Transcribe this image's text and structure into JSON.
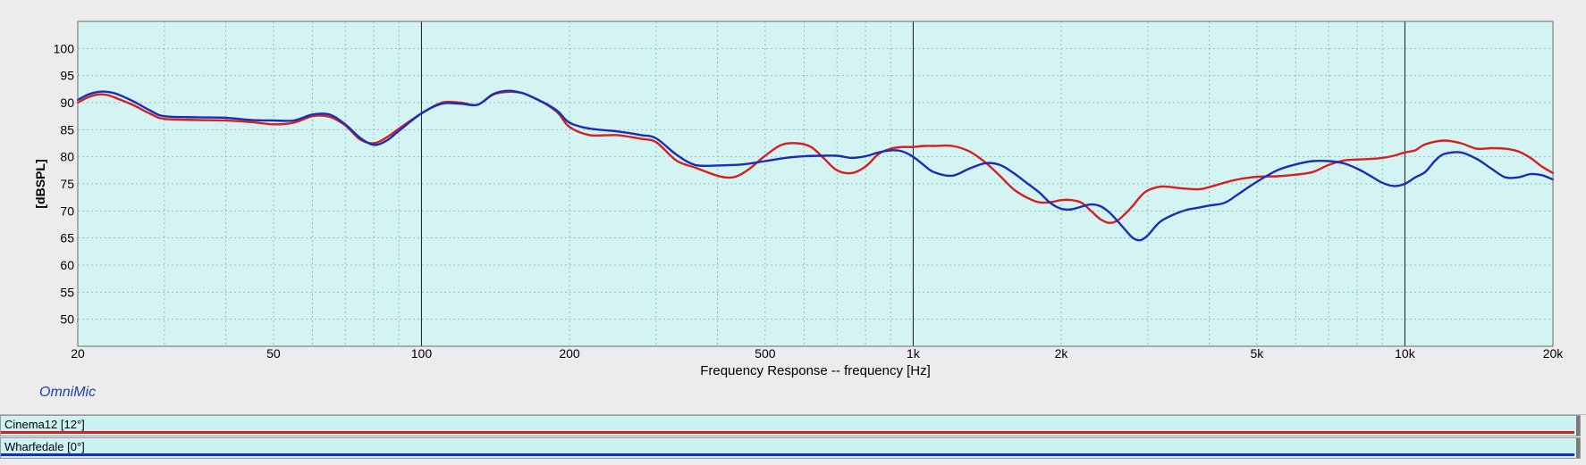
{
  "brand_label": "OmniMic",
  "legend": [
    {
      "label": "Cinema12 [12°]",
      "color": "#d42020"
    },
    {
      "label": "Wharfedale [0°]",
      "color": "#1a2db8"
    }
  ],
  "chart_data": {
    "type": "line",
    "title": "",
    "xlabel": "Frequency Response -- frequency [Hz]",
    "ylabel": "[dBSPL]",
    "xscale": "log",
    "xlim": [
      20,
      20000
    ],
    "ylim": [
      45,
      105
    ],
    "y_ticks": [
      50,
      55,
      60,
      65,
      70,
      75,
      80,
      85,
      90,
      95,
      100
    ],
    "x_ticks": [
      {
        "value": 20,
        "label": "20"
      },
      {
        "value": 50,
        "label": "50"
      },
      {
        "value": 100,
        "label": "100"
      },
      {
        "value": 200,
        "label": "200"
      },
      {
        "value": 500,
        "label": "500"
      },
      {
        "value": 1000,
        "label": "1k"
      },
      {
        "value": 2000,
        "label": "2k"
      },
      {
        "value": 5000,
        "label": "5k"
      },
      {
        "value": 10000,
        "label": "10k"
      },
      {
        "value": 20000,
        "label": "20k"
      }
    ],
    "grid": true,
    "background": "#d4f4f4",
    "legend_position": "bottom",
    "series": [
      {
        "name": "Cinema12 [12°]",
        "color": "#d42020",
        "x": [
          20,
          21,
          22,
          23,
          24,
          26,
          28,
          30,
          35,
          40,
          45,
          50,
          55,
          60,
          65,
          70,
          75,
          80,
          85,
          90,
          100,
          110,
          120,
          130,
          140,
          150,
          160,
          170,
          180,
          190,
          200,
          220,
          250,
          280,
          300,
          330,
          360,
          400,
          430,
          460,
          500,
          540,
          580,
          620,
          660,
          700,
          750,
          800,
          850,
          900,
          950,
          1000,
          1050,
          1100,
          1200,
          1300,
          1400,
          1500,
          1600,
          1700,
          1800,
          1900,
          2000,
          2100,
          2200,
          2300,
          2400,
          2500,
          2600,
          2700,
          2800,
          2900,
          3000,
          3200,
          3500,
          3800,
          4000,
          4500,
          5000,
          5500,
          6000,
          6500,
          7000,
          7500,
          8000,
          8500,
          9000,
          9500,
          10000,
          10500,
          11000,
          12000,
          13000,
          14000,
          15000,
          16000,
          17000,
          18000,
          19000,
          20000
        ],
        "y": [
          90,
          91,
          91.5,
          91.4,
          90.8,
          89.5,
          88,
          87,
          86.8,
          86.7,
          86.4,
          86,
          86.3,
          87.5,
          87.4,
          85.8,
          83.2,
          82.5,
          83.6,
          85.2,
          88,
          90,
          90,
          89.6,
          91.5,
          92,
          91.8,
          90.8,
          89.6,
          88,
          85.5,
          84,
          84,
          83.3,
          82.7,
          79.3,
          78,
          76.5,
          76.2,
          77.5,
          80.2,
          82.2,
          82.5,
          81.8,
          79.6,
          77.5,
          77,
          78.2,
          80.5,
          81.5,
          81.8,
          81.8,
          82,
          82,
          82,
          81,
          79,
          76.5,
          74,
          72.5,
          71.6,
          71.6,
          72,
          72,
          71.5,
          70,
          68.5,
          67.8,
          68.2,
          69.5,
          71,
          72.7,
          73.8,
          74.5,
          74.2,
          74,
          74.4,
          75.7,
          76.3,
          76.4,
          76.7,
          77.2,
          78.5,
          79.3,
          79.5,
          79.6,
          79.8,
          80.2,
          80.8,
          81.2,
          82.3,
          83,
          82.5,
          81.5,
          81.6,
          81.5,
          81,
          79.8,
          78.2,
          77
        ]
      },
      {
        "name": "Wharfedale [0°]",
        "color": "#1a2db8",
        "x": [
          20,
          21,
          22,
          23,
          24,
          26,
          28,
          30,
          35,
          40,
          45,
          50,
          55,
          60,
          65,
          70,
          75,
          80,
          85,
          90,
          100,
          110,
          120,
          130,
          140,
          150,
          160,
          170,
          180,
          190,
          200,
          220,
          250,
          280,
          300,
          330,
          360,
          400,
          450,
          500,
          550,
          600,
          650,
          700,
          750,
          800,
          850,
          900,
          950,
          1000,
          1050,
          1100,
          1200,
          1300,
          1400,
          1500,
          1600,
          1700,
          1800,
          1900,
          2000,
          2100,
          2200,
          2300,
          2400,
          2500,
          2600,
          2700,
          2800,
          2900,
          3000,
          3100,
          3200,
          3400,
          3600,
          3800,
          4000,
          4300,
          4600,
          5000,
          5500,
          6000,
          6500,
          7000,
          7500,
          8000,
          8500,
          9000,
          9500,
          10000,
          10500,
          11000,
          11500,
          12000,
          13000,
          14000,
          15000,
          16000,
          17000,
          18000,
          19000,
          20000
        ],
        "y": [
          90.5,
          91.5,
          92,
          92,
          91.6,
          90.2,
          88.6,
          87.5,
          87.3,
          87.2,
          86.8,
          86.7,
          86.7,
          87.8,
          87.8,
          86,
          83.5,
          82.2,
          83,
          84.8,
          88,
          89.8,
          89.8,
          89.6,
          91.6,
          92.2,
          91.8,
          90.8,
          89.7,
          88.3,
          86.3,
          85.2,
          84.7,
          84,
          83.4,
          80.4,
          78.5,
          78.4,
          78.6,
          79.2,
          79.8,
          80.1,
          80.2,
          80.2,
          79.8,
          80.1,
          80.8,
          81.2,
          81,
          80,
          78.5,
          77.2,
          76.5,
          77.8,
          78.8,
          78.5,
          77,
          75.2,
          73.5,
          71.5,
          70.4,
          70.3,
          70.8,
          71.2,
          70.9,
          69.8,
          68.2,
          66.5,
          65,
          64.6,
          65.5,
          67,
          68.2,
          69.4,
          70.2,
          70.6,
          71,
          71.5,
          73.2,
          75.4,
          77.5,
          78.6,
          79.2,
          79.2,
          78.8,
          77.8,
          76.5,
          75.2,
          74.6,
          75,
          76.2,
          77.2,
          79.2,
          80.5,
          80.8,
          79.6,
          77.8,
          76.2,
          76.2,
          76.8,
          76.6,
          75.8
        ]
      }
    ]
  }
}
